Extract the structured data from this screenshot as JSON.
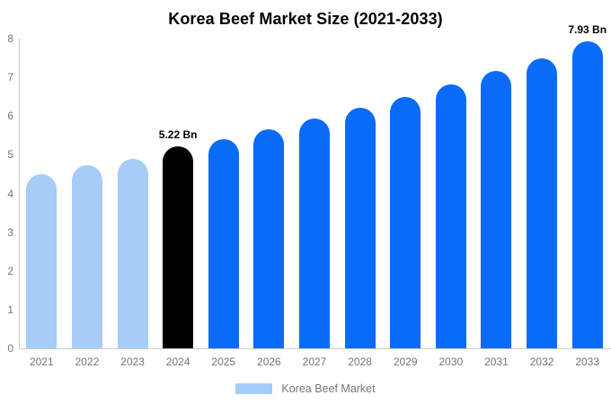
{
  "title": "Korea Beef Market Size (2021-2033)",
  "legend": {
    "label": "Korea Beef Market",
    "color": "#a7ccf8"
  },
  "colors": {
    "historical_bar": "#a7ccf8",
    "highlight_bar": "#000000",
    "forecast_bar": "#0b6bf9",
    "axis_line": "#cccccc",
    "tick_label": "#757575",
    "annotation_text": "#000000"
  },
  "chart_data": {
    "type": "bar",
    "title": "Korea Beef Market Size (2021-2033)",
    "xlabel": "",
    "ylabel": "",
    "unit": "Bn",
    "categories": [
      "2021",
      "2022",
      "2023",
      "2024",
      "2025",
      "2026",
      "2027",
      "2028",
      "2029",
      "2030",
      "2031",
      "2032",
      "2033"
    ],
    "values": [
      4.5,
      4.72,
      4.9,
      5.22,
      5.41,
      5.66,
      5.94,
      6.22,
      6.5,
      6.82,
      7.17,
      7.5,
      7.93
    ],
    "bar_colors": [
      "#a7ccf8",
      "#a7ccf8",
      "#a7ccf8",
      "#000000",
      "#0b6bf9",
      "#0b6bf9",
      "#0b6bf9",
      "#0b6bf9",
      "#0b6bf9",
      "#0b6bf9",
      "#0b6bf9",
      "#0b6bf9",
      "#0b6bf9"
    ],
    "annotations": [
      {
        "category": "2024",
        "label": "5.22 Bn"
      },
      {
        "category": "2033",
        "label": "7.93 Bn"
      }
    ],
    "ylim": [
      0,
      8
    ],
    "yticks": [
      "0",
      "1",
      "2",
      "3",
      "4",
      "5",
      "6",
      "7",
      "8"
    ],
    "grid": false,
    "legend_position": "bottom"
  }
}
